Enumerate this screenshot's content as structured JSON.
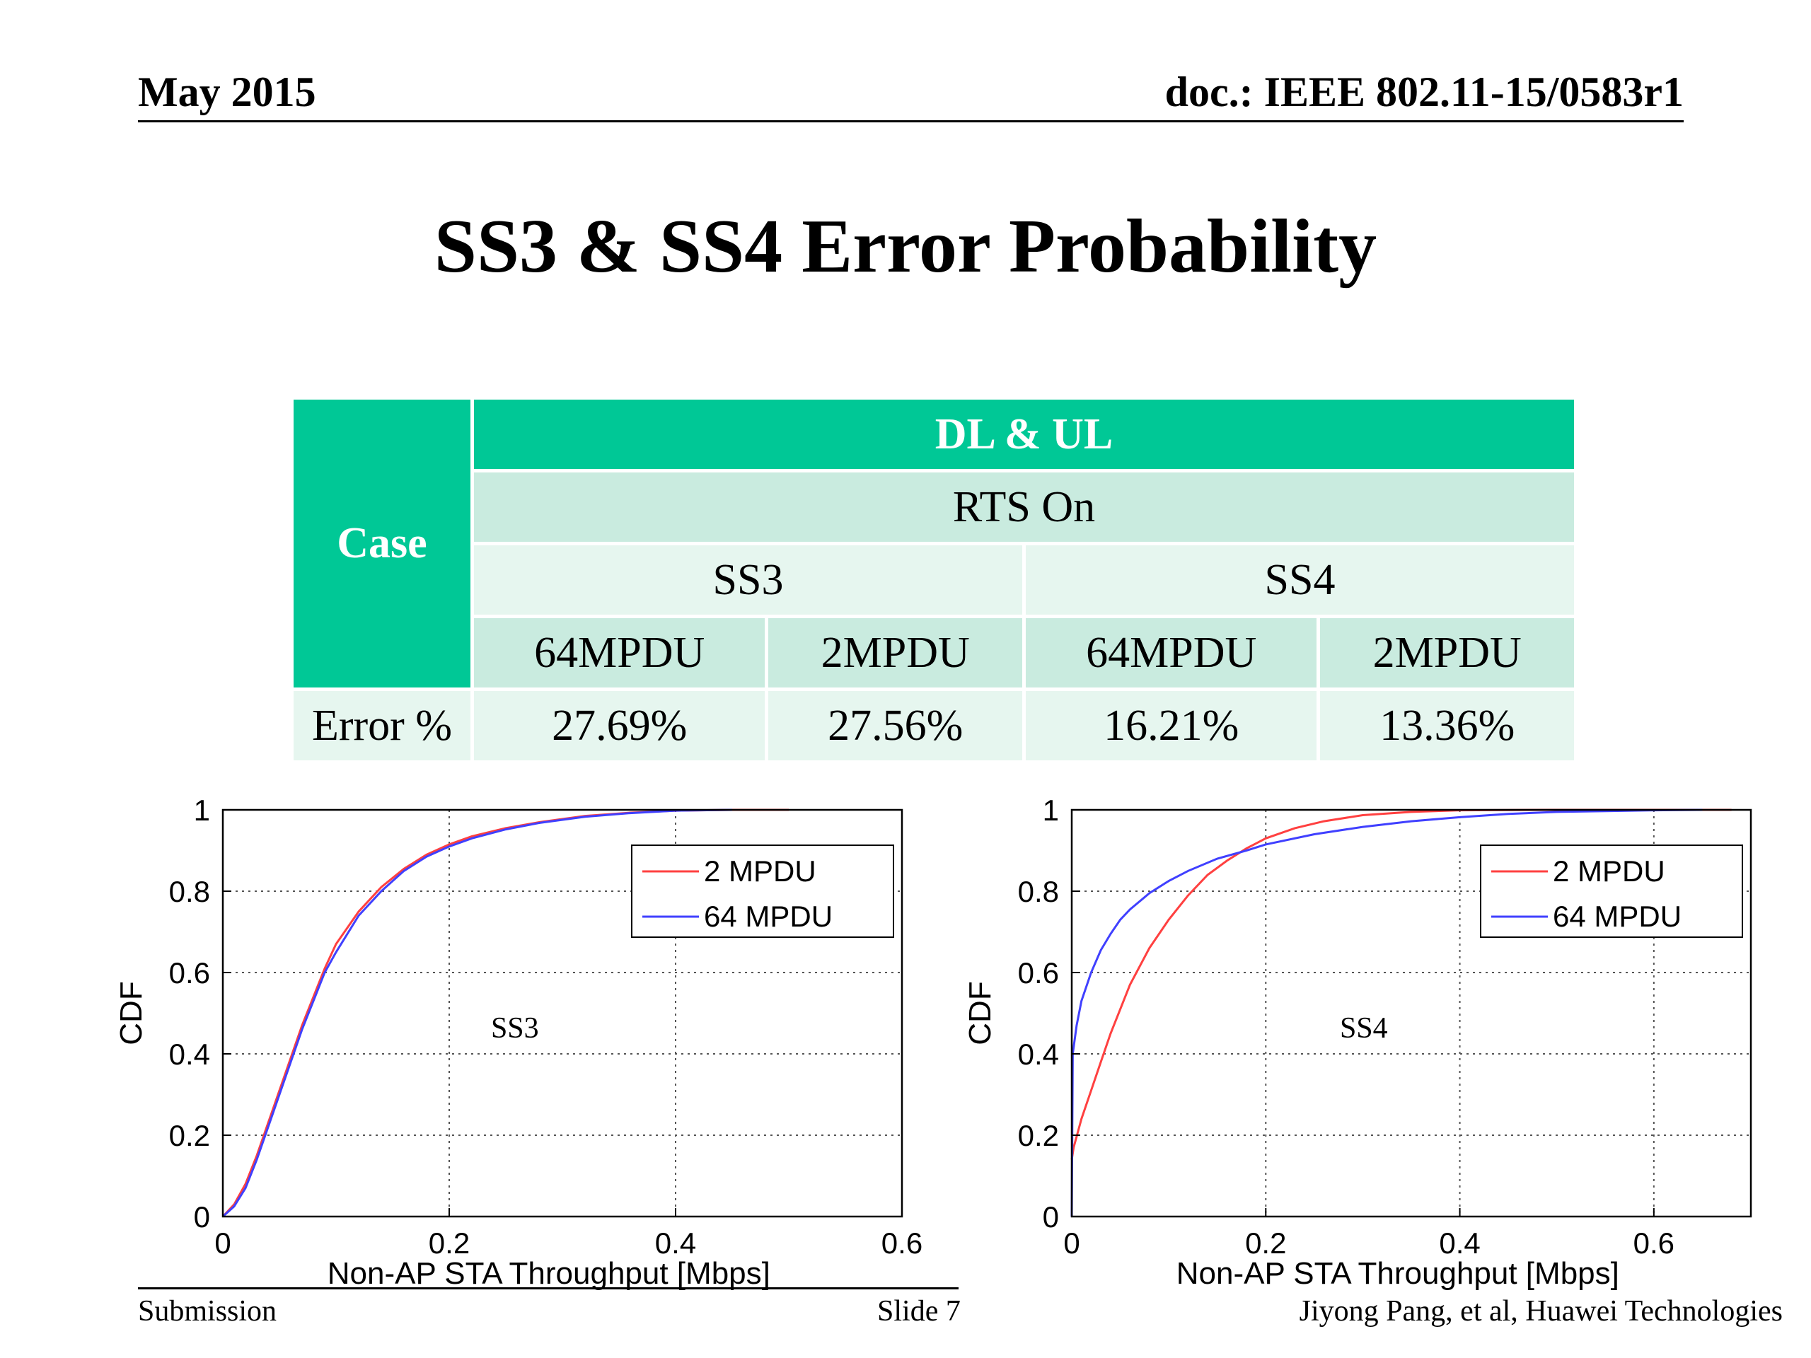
{
  "header": {
    "date": "May 2015",
    "doc": "doc.: IEEE 802.11-15/0583r1"
  },
  "title": "SS3 & SS4 Error Probability",
  "table": {
    "case_label": "Case",
    "group_header": "DL & UL",
    "subgroup_header": "RTS On",
    "scenarios": [
      "SS3",
      "SS4"
    ],
    "columns": [
      "64MPDU",
      "2MPDU",
      "64MPDU",
      "2MPDU"
    ],
    "row_label": "Error %",
    "values": [
      "27.69%",
      "27.56%",
      "16.21%",
      "13.36%"
    ]
  },
  "chart_data": [
    {
      "type": "line",
      "annotation": "SS3",
      "xlabel": "Non-AP STA Throughput [Mbps]",
      "ylabel": "CDF",
      "xlim": [
        0,
        0.6
      ],
      "ylim": [
        0,
        1
      ],
      "xticks": [
        "0",
        "0.2",
        "0.4",
        "0.6"
      ],
      "yticks": [
        "0",
        "0.2",
        "0.4",
        "0.6",
        "0.8",
        "1"
      ],
      "grid": true,
      "legend_position": "top-right",
      "series": [
        {
          "name": "2 MPDU",
          "color": "#ff4040",
          "x": [
            0,
            0.01,
            0.02,
            0.03,
            0.04,
            0.05,
            0.06,
            0.07,
            0.08,
            0.09,
            0.1,
            0.12,
            0.14,
            0.16,
            0.18,
            0.2,
            0.22,
            0.25,
            0.28,
            0.32,
            0.36,
            0.4,
            0.45,
            0.5
          ],
          "y": [
            0,
            0.03,
            0.08,
            0.15,
            0.23,
            0.31,
            0.39,
            0.47,
            0.54,
            0.61,
            0.67,
            0.75,
            0.81,
            0.855,
            0.89,
            0.915,
            0.935,
            0.955,
            0.97,
            0.985,
            0.993,
            0.998,
            1.0,
            1.0
          ]
        },
        {
          "name": "64 MPDU",
          "color": "#4040ff",
          "x": [
            0,
            0.01,
            0.02,
            0.03,
            0.04,
            0.05,
            0.06,
            0.07,
            0.08,
            0.09,
            0.1,
            0.12,
            0.14,
            0.16,
            0.18,
            0.2,
            0.22,
            0.25,
            0.28,
            0.32,
            0.36,
            0.4,
            0.45
          ],
          "y": [
            0,
            0.025,
            0.07,
            0.14,
            0.22,
            0.3,
            0.38,
            0.46,
            0.53,
            0.6,
            0.65,
            0.74,
            0.8,
            0.85,
            0.885,
            0.91,
            0.93,
            0.952,
            0.968,
            0.983,
            0.992,
            0.998,
            1.0
          ]
        }
      ]
    },
    {
      "type": "line",
      "annotation": "SS4",
      "xlabel": "Non-AP STA Throughput [Mbps]",
      "ylabel": "CDF",
      "xlim": [
        0,
        0.7
      ],
      "ylim": [
        0,
        1
      ],
      "xticks": [
        "0",
        "0.2",
        "0.4",
        "0.6"
      ],
      "yticks": [
        "0",
        "0.2",
        "0.4",
        "0.6",
        "0.8",
        "1"
      ],
      "grid": true,
      "legend_position": "top-right",
      "series": [
        {
          "name": "2 MPDU",
          "color": "#ff4040",
          "x": [
            0,
            0.002,
            0.01,
            0.02,
            0.03,
            0.04,
            0.05,
            0.06,
            0.08,
            0.1,
            0.12,
            0.14,
            0.16,
            0.18,
            0.2,
            0.23,
            0.26,
            0.3,
            0.35,
            0.4,
            0.5,
            0.6,
            0.68
          ],
          "y": [
            0.14,
            0.17,
            0.24,
            0.31,
            0.38,
            0.45,
            0.51,
            0.57,
            0.66,
            0.73,
            0.79,
            0.84,
            0.875,
            0.905,
            0.93,
            0.955,
            0.972,
            0.987,
            0.995,
            0.999,
            1.0,
            1.0,
            1.0
          ]
        },
        {
          "name": "64 MPDU",
          "color": "#4040ff",
          "x": [
            0,
            0.001,
            0.005,
            0.01,
            0.02,
            0.03,
            0.04,
            0.05,
            0.06,
            0.08,
            0.1,
            0.12,
            0.15,
            0.18,
            0.2,
            0.25,
            0.3,
            0.35,
            0.4,
            0.45,
            0.5,
            0.6,
            0.65
          ],
          "y": [
            0,
            0.4,
            0.47,
            0.53,
            0.6,
            0.655,
            0.695,
            0.73,
            0.755,
            0.795,
            0.825,
            0.85,
            0.88,
            0.9,
            0.915,
            0.94,
            0.958,
            0.972,
            0.982,
            0.99,
            0.995,
            0.999,
            1.0
          ]
        }
      ]
    }
  ],
  "footer": {
    "left": "Submission",
    "middle": "Slide 7",
    "right": "Jiyong Pang, et al, Huawei Technologies"
  }
}
